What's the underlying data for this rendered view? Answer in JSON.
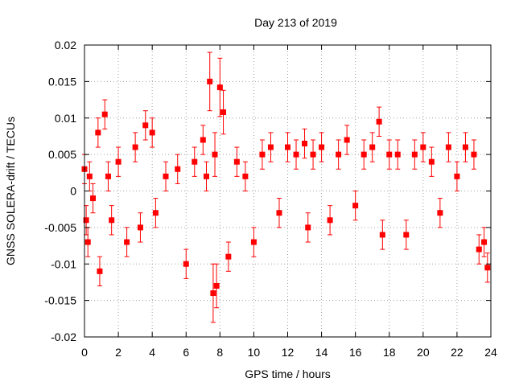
{
  "chart_data": {
    "type": "scatter",
    "title": "Day 213 of 2019",
    "xlabel": "GPS time / hours",
    "ylabel": "GNSS SOLERA-drift / TECUs",
    "xlim": [
      0,
      24
    ],
    "ylim": [
      -0.02,
      0.02
    ],
    "x_ticks": [
      0,
      2,
      4,
      6,
      8,
      10,
      12,
      14,
      16,
      18,
      20,
      22,
      24
    ],
    "x_tick_labels": [
      "0",
      "2",
      "4",
      "6",
      "8",
      "10",
      "12",
      "14",
      "16",
      "18",
      "20",
      "22",
      "24"
    ],
    "y_ticks": [
      -0.02,
      -0.015,
      -0.01,
      -0.005,
      0,
      0.005,
      0.01,
      0.015,
      0.02
    ],
    "y_tick_labels": [
      "-0.02",
      "-0.015",
      "-0.01",
      "-0.005",
      "0",
      "0.005",
      "0.01",
      "0.015",
      "0.02"
    ],
    "grid": true,
    "legend": "none",
    "marker": "square",
    "error_bars": true,
    "series_color": "#ff0000",
    "series": [
      {
        "x": [
          0.0,
          0.1,
          0.2,
          0.3,
          0.5,
          0.8,
          0.9,
          1.2,
          1.4,
          1.6,
          2.0,
          2.5,
          3.0,
          3.3,
          3.6,
          4.0,
          4.2,
          4.8,
          5.5,
          6.0,
          6.5,
          7.0,
          7.2,
          7.4,
          7.6,
          7.7,
          7.8,
          8.0,
          8.2,
          8.5,
          9.0,
          9.5,
          10.0,
          10.5,
          11.0,
          11.5,
          12.0,
          12.5,
          13.0,
          13.2,
          13.5,
          14.0,
          14.5,
          15.0,
          15.5,
          16.0,
          16.5,
          17.0,
          17.4,
          17.6,
          18.0,
          18.5,
          19.0,
          19.5,
          20.0,
          20.5,
          21.0,
          21.5,
          22.0,
          22.5,
          23.0,
          23.3,
          23.6,
          23.8
        ],
        "y": [
          0.003,
          -0.004,
          -0.007,
          0.002,
          -0.001,
          0.008,
          -0.011,
          0.0105,
          0.002,
          -0.004,
          0.004,
          -0.007,
          0.006,
          -0.005,
          0.009,
          0.008,
          -0.003,
          0.002,
          0.003,
          -0.01,
          0.004,
          0.007,
          0.002,
          0.015,
          -0.014,
          0.005,
          -0.013,
          0.0142,
          0.0108,
          -0.009,
          0.004,
          0.002,
          -0.007,
          0.005,
          0.006,
          -0.003,
          0.006,
          0.005,
          0.0065,
          -0.005,
          0.005,
          0.006,
          -0.004,
          0.005,
          0.007,
          -0.002,
          0.005,
          0.006,
          0.0095,
          -0.006,
          0.005,
          0.005,
          -0.006,
          0.005,
          0.006,
          0.004,
          -0.003,
          0.006,
          0.002,
          0.006,
          0.005,
          -0.008,
          -0.007,
          -0.0105
        ],
        "yerr": [
          0.002,
          0.002,
          0.002,
          0.002,
          0.002,
          0.002,
          0.002,
          0.002,
          0.002,
          0.002,
          0.002,
          0.002,
          0.002,
          0.002,
          0.002,
          0.002,
          0.002,
          0.002,
          0.002,
          0.002,
          0.002,
          0.002,
          0.002,
          0.004,
          0.004,
          0.003,
          0.003,
          0.004,
          0.003,
          0.002,
          0.002,
          0.002,
          0.002,
          0.002,
          0.002,
          0.002,
          0.002,
          0.002,
          0.002,
          0.002,
          0.002,
          0.002,
          0.002,
          0.002,
          0.002,
          0.002,
          0.002,
          0.002,
          0.002,
          0.002,
          0.002,
          0.002,
          0.002,
          0.002,
          0.002,
          0.002,
          0.002,
          0.002,
          0.002,
          0.002,
          0.002,
          0.002,
          0.002,
          0.002
        ]
      }
    ]
  }
}
